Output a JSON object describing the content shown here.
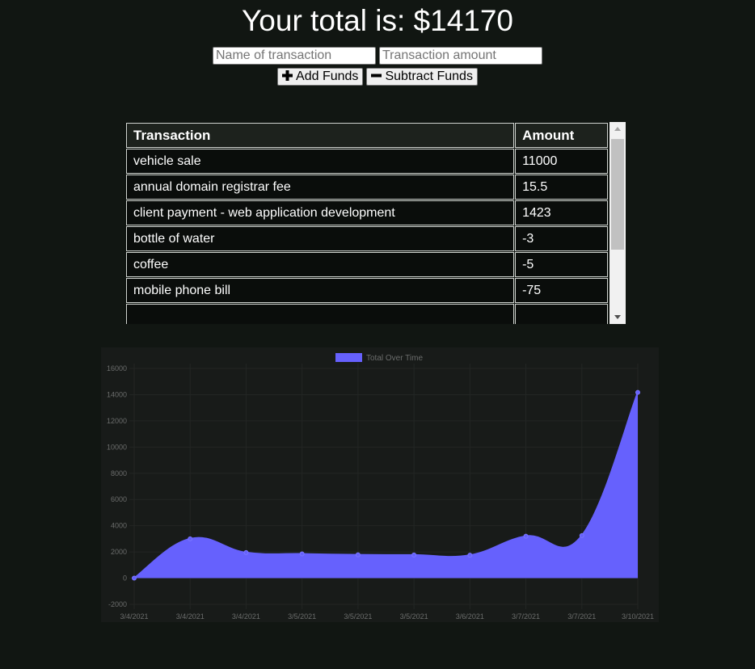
{
  "header": {
    "total_label": "Your total is: $14170"
  },
  "form": {
    "name_placeholder": "Name of transaction",
    "amount_placeholder": "Transaction amount",
    "add_label": "Add Funds",
    "subtract_label": "Subtract Funds"
  },
  "table": {
    "headers": [
      "Transaction",
      "Amount"
    ],
    "rows": [
      {
        "name": "vehicle sale",
        "amount": "11000"
      },
      {
        "name": "annual domain registrar fee",
        "amount": "15.5"
      },
      {
        "name": "client payment - web application development",
        "amount": "1423"
      },
      {
        "name": "bottle of water",
        "amount": "-3"
      },
      {
        "name": "coffee",
        "amount": "-5"
      },
      {
        "name": "mobile phone bill",
        "amount": "-75"
      },
      {
        "name": "",
        "amount": ""
      }
    ]
  },
  "chart_data": {
    "type": "area",
    "legend": "Total Over Time",
    "legend_position": "top",
    "color": "#6661fd",
    "grid": true,
    "categories": [
      "3/4/2021",
      "3/4/2021",
      "3/4/2021",
      "3/5/2021",
      "3/5/2021",
      "3/5/2021",
      "3/6/2021",
      "3/7/2021",
      "3/7/2021",
      "3/10/2021"
    ],
    "values": [
      0,
      3000,
      1950,
      1850,
      1780,
      1770,
      1750,
      3200,
      3250,
      14170
    ],
    "ylim": [
      -2000,
      16000
    ],
    "yticks": [
      -2000,
      0,
      2000,
      4000,
      6000,
      8000,
      10000,
      12000,
      14000,
      16000
    ]
  }
}
